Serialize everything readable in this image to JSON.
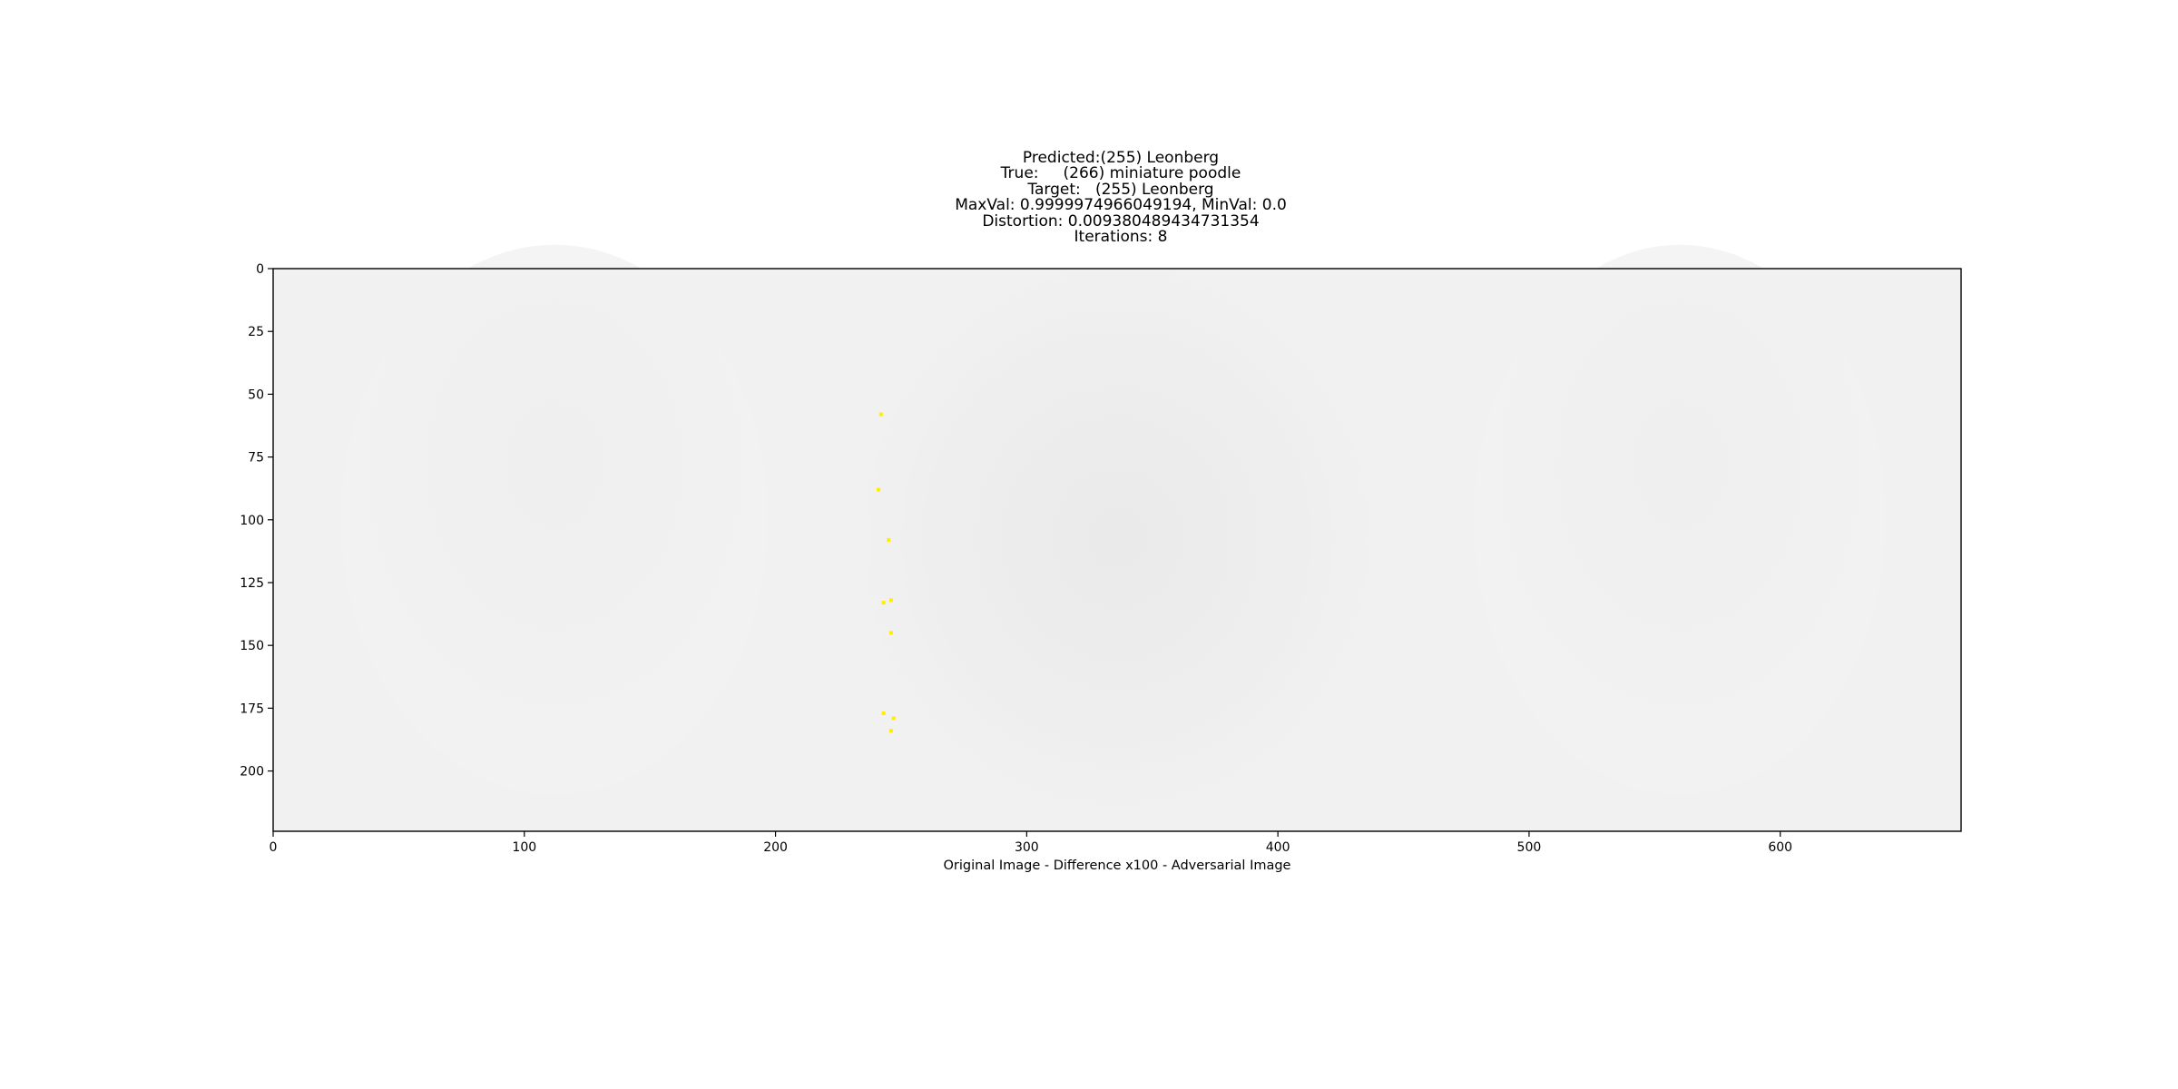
{
  "chart_data": {
    "type": "heatmap",
    "title_lines": [
      "Predicted:(255) Leonberg",
      "True:     (266) miniature poodle",
      "Target:   (255) Leonberg",
      "MaxVal: 0.9999974966049194, MinVal: 0.0",
      "Distortion: 0.009380489434731354",
      "Iterations: 8"
    ],
    "xlabel": "Original Image - Difference x100 - Adversarial Image",
    "ylabel": "",
    "xlim": [
      0,
      672
    ],
    "ylim": [
      224,
      0
    ],
    "x_ticks": [
      0,
      100,
      200,
      300,
      400,
      500,
      600
    ],
    "y_ticks": [
      0,
      25,
      50,
      75,
      100,
      125,
      150,
      175,
      200
    ],
    "image_background": "#f1f1f1",
    "highlight_color": "#ffee00",
    "highlight_points": [
      {
        "x": 242,
        "y": 58
      },
      {
        "x": 241,
        "y": 88
      },
      {
        "x": 245,
        "y": 108
      },
      {
        "x": 243,
        "y": 133
      },
      {
        "x": 246,
        "y": 132
      },
      {
        "x": 246,
        "y": 145
      },
      {
        "x": 243,
        "y": 177
      },
      {
        "x": 247,
        "y": 179
      },
      {
        "x": 246,
        "y": 184
      }
    ]
  }
}
